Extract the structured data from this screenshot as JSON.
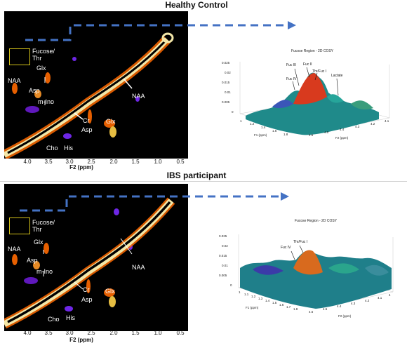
{
  "panels": [
    {
      "title": "Healthy Control",
      "spectrum": {
        "box_label": "Fucose/\nThr",
        "labels": {
          "naa_left": "NAA",
          "glx_top": "Glx",
          "asp_top": "Asp",
          "mino": "m-Ino",
          "cr": "Cr",
          "asp_bottom": "Asp",
          "glx_right": "Glx",
          "cho": "Cho",
          "his": "His",
          "naa_diag": "NAA"
        },
        "x_ticks": [
          "4.0",
          "3.5",
          "3.0",
          "2.5",
          "2.0",
          "1.5",
          "1.0",
          "0.5"
        ],
        "x_title": "F2 (ppm)"
      },
      "plot3d": {
        "title": "Fucose Region - 2D COSY",
        "z_ticks": [
          "0.025",
          "0.02",
          "0.015",
          "0.01",
          "0.005",
          "0"
        ],
        "f1_ticks": [
          "1",
          "1.2",
          "1.4",
          "1.6",
          "1.8"
        ],
        "f2_ticks": [
          "4.6",
          "4.5",
          "4.4",
          "4.3",
          "4.2",
          "4.1"
        ],
        "f1_title": "F1 (ppm)",
        "f2_title": "F2 (ppm)",
        "annotations": [
          "Fuc III",
          "Fuc II",
          "Fuc IV",
          "Thr/Fuc I",
          "Lactate"
        ]
      }
    },
    {
      "title": "IBS participant",
      "spectrum": {
        "box_label": "Fucose/\nThr",
        "labels": {
          "naa_left": "NAA",
          "glx_top": "Glx",
          "asp_top": "Asp",
          "mino": "m-Ino",
          "cr": "Cr",
          "asp_bottom": "Asp",
          "glx_right": "Glx",
          "cho": "Cho",
          "his": "His",
          "naa_diag": "NAA"
        },
        "x_ticks": [
          "4.0",
          "3.5",
          "3.0",
          "2.5",
          "2.0",
          "1.5",
          "1.0",
          "0.5"
        ],
        "x_title": "F2 (ppm)"
      },
      "plot3d": {
        "title": "Fucose Region - 2D COSY",
        "z_ticks": [
          "0.025",
          "0.02",
          "0.015",
          "0.01",
          "0.005",
          "0"
        ],
        "f1_ticks": [
          "1",
          "1.1",
          "1.2",
          "1.3",
          "1.4",
          "1.5",
          "1.6",
          "1.7",
          "1.8"
        ],
        "f2_ticks": [
          "4.6",
          "4.5",
          "4.4",
          "4.3",
          "4.2",
          "4.1",
          "4"
        ],
        "f1_title": "F1 (ppm)",
        "f2_title": "F2 (ppm)",
        "annotations": [
          "Thr/Fuc I",
          "Fuc IV"
        ]
      }
    }
  ],
  "colors": {
    "arrow": "#4472c4",
    "box": "#d4c21a",
    "spectrum_bg": "#000000",
    "diagonal": "#f3e7a8",
    "peak_hot": "#ff6a00",
    "peak_cool": "#7a2cff"
  }
}
